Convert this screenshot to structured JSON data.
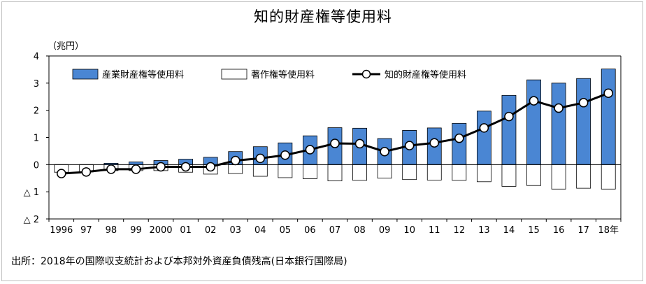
{
  "title": "知的財産権等使用料",
  "source": "出所：2018年の国際収支統計および本邦対外資産負債残高(日本銀行国際局)",
  "chart_data": {
    "type": "bar",
    "title": "知的財産権等使用料",
    "ylabel": "（兆円）",
    "xlabel": "",
    "ylim": [
      -2,
      4
    ],
    "yticks": [
      4,
      3,
      2,
      1,
      0,
      -1,
      -2
    ],
    "ytick_labels": [
      "4",
      "3",
      "2",
      "1",
      "0",
      "△ 1",
      "△ 2"
    ],
    "grid": false,
    "legend_position": "top",
    "categories": [
      "1996",
      "97",
      "98",
      "99",
      "2000",
      "01",
      "02",
      "03",
      "04",
      "05",
      "06",
      "07",
      "08",
      "09",
      "10",
      "11",
      "12",
      "13",
      "14",
      "15",
      "16",
      "17",
      "18年"
    ],
    "series": [
      {
        "name": "産業財産権等使用料",
        "kind": "bar",
        "color": "#4a86d3",
        "values": [
          -0.05,
          0.0,
          0.05,
          0.1,
          0.15,
          0.2,
          0.27,
          0.48,
          0.66,
          0.8,
          1.06,
          1.36,
          1.34,
          0.96,
          1.26,
          1.35,
          1.52,
          1.97,
          2.55,
          3.12,
          3.0,
          3.17,
          3.52
        ]
      },
      {
        "name": "著作権等使用料",
        "kind": "bar",
        "color": "#ffffff",
        "values": [
          -0.28,
          -0.27,
          -0.22,
          -0.22,
          -0.22,
          -0.28,
          -0.35,
          -0.33,
          -0.43,
          -0.48,
          -0.52,
          -0.6,
          -0.58,
          -0.5,
          -0.55,
          -0.57,
          -0.58,
          -0.63,
          -0.8,
          -0.77,
          -0.9,
          -0.87,
          -0.9
        ]
      },
      {
        "name": "知的財産権等使用料",
        "kind": "line",
        "color": "#000000",
        "values": [
          -0.33,
          -0.27,
          -0.17,
          -0.17,
          -0.08,
          -0.08,
          -0.08,
          0.15,
          0.23,
          0.35,
          0.55,
          0.78,
          0.77,
          0.48,
          0.7,
          0.8,
          0.97,
          1.35,
          1.77,
          2.35,
          2.08,
          2.28,
          2.63
        ]
      }
    ]
  }
}
